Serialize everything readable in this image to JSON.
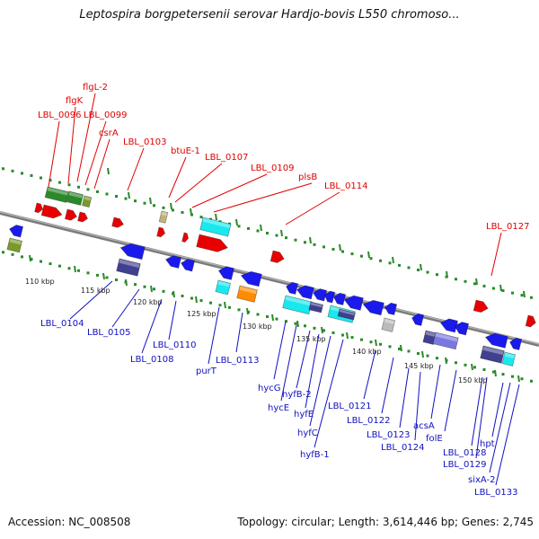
{
  "title": "Leptospira borgpetersenii serovar Hardjo-bovis L550 chromoso...",
  "footer": {
    "accession": "Accession: NC_008508",
    "summary": "Topology: circular; Length: 3,614,446 bp; Genes: 2,745"
  },
  "colors": {
    "red": "#e80000",
    "blue": "#1a1aee",
    "navy": "#404090",
    "cyan": "#19e8ef",
    "green": "#2a8a2a",
    "olive": "#7a9a2a",
    "tan": "#c2b27a",
    "orange": "#ff8c00",
    "gray": "#bbbbbb",
    "lavender": "#7a78e0",
    "backbone": "#888888",
    "tick": "#2a8a2a",
    "red_label": "#e00000",
    "blue_label": "#1010c0"
  },
  "kbp_labels": [
    "110 kbp",
    "115 kbp",
    "120 kbp",
    "125 kbp",
    "130 kbp",
    "135 kbp",
    "140 kbp",
    "145 kbp",
    "150 kbp"
  ],
  "top_labels": [
    "LBL_0096",
    "flgK",
    "flgL-2",
    "LBL_0099",
    "csrA",
    "LBL_0103",
    "btuE-1",
    "LBL_0107",
    "LBL_0109",
    "plsB",
    "LBL_0114",
    "LBL_0127"
  ],
  "bottom_labels": [
    "LBL_0104",
    "LBL_0105",
    "LBL_0108",
    "LBL_0110",
    "purT",
    "LBL_0113",
    "hycG",
    "hycE",
    "hyfB-2",
    "hyfE",
    "hyfC",
    "hyfB-1",
    "LBL_0121",
    "LBL_0122",
    "LBL_0123",
    "LBL_0124",
    "acsA",
    "folE",
    "LBL_0128",
    "LBL_0129",
    "hpt",
    "sixA-2",
    "LBL_0133"
  ]
}
